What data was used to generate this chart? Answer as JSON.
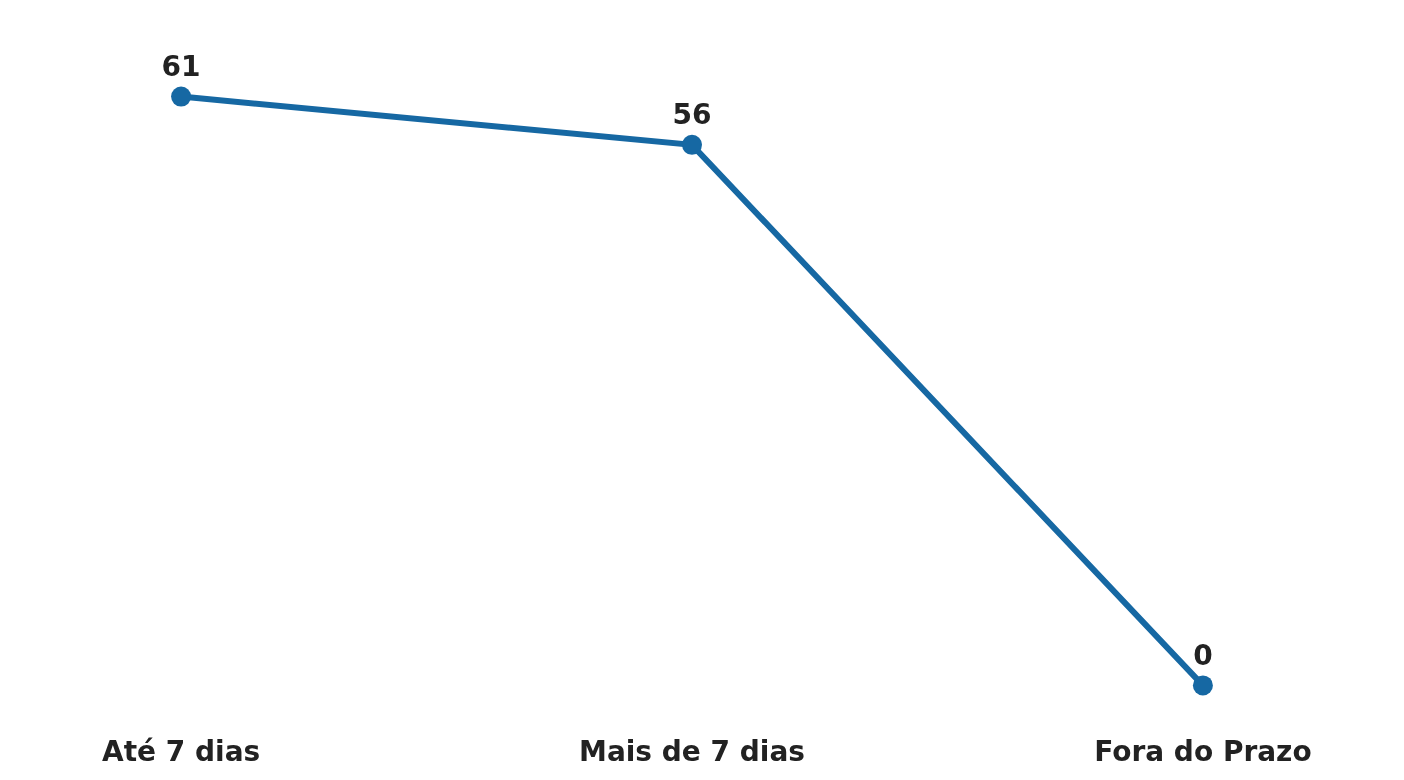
{
  "chart_data": {
    "type": "line",
    "categories": [
      "Até 7 dias",
      "Mais de 7 dias",
      "Fora do Prazo"
    ],
    "series": [
      {
        "color": "#1668a3",
        "values": [
          61,
          56,
          0
        ]
      }
    ],
    "data_labels": true,
    "marker": "circle",
    "line_style": "solid"
  }
}
